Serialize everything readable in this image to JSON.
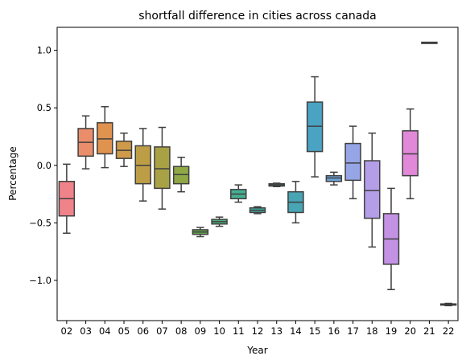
{
  "chart_data": {
    "type": "box",
    "title": "shortfall difference in cities across canada",
    "xlabel": "Year",
    "ylabel": "Percentage",
    "ylim": [
      -1.35,
      1.2
    ],
    "yticks": [
      -1.0,
      -0.5,
      0.0,
      0.5,
      1.0
    ],
    "ytick_labels": [
      "−1.0",
      "−0.5",
      "0.0",
      "0.5",
      "1.0"
    ],
    "grid": false,
    "legend": "none",
    "categories": [
      "02",
      "03",
      "04",
      "05",
      "06",
      "07",
      "08",
      "09",
      "10",
      "11",
      "12",
      "13",
      "14",
      "15",
      "16",
      "17",
      "18",
      "19",
      "20",
      "21",
      "22"
    ],
    "boxes": [
      {
        "label": "02",
        "whislo": -0.59,
        "q1": -0.44,
        "med": -0.29,
        "q3": -0.14,
        "whishi": 0.01,
        "color": "#f0828a"
      },
      {
        "label": "03",
        "whislo": -0.03,
        "q1": 0.08,
        "med": 0.2,
        "q3": 0.32,
        "whishi": 0.43,
        "color": "#e98d6b"
      },
      {
        "label": "04",
        "whislo": -0.02,
        "q1": 0.1,
        "med": 0.23,
        "q3": 0.37,
        "whishi": 0.51,
        "color": "#e0934f"
      },
      {
        "label": "05",
        "whislo": -0.01,
        "q1": 0.06,
        "med": 0.13,
        "q3": 0.21,
        "whishi": 0.28,
        "color": "#cf9a4a"
      },
      {
        "label": "06",
        "whislo": -0.31,
        "q1": -0.16,
        "med": 0.0,
        "q3": 0.17,
        "whishi": 0.32,
        "color": "#bd9e47"
      },
      {
        "label": "07",
        "whislo": -0.38,
        "q1": -0.2,
        "med": -0.03,
        "q3": 0.16,
        "whishi": 0.33,
        "color": "#a9a244"
      },
      {
        "label": "08",
        "whislo": -0.23,
        "q1": -0.16,
        "med": -0.08,
        "q3": -0.01,
        "whishi": 0.07,
        "color": "#8fa845"
      },
      {
        "label": "09",
        "whislo": -0.62,
        "q1": -0.6,
        "med": -0.58,
        "q3": -0.56,
        "whishi": -0.54,
        "color": "#65ad4e"
      },
      {
        "label": "10",
        "whislo": -0.53,
        "q1": -0.51,
        "med": -0.49,
        "q3": -0.47,
        "whishi": -0.45,
        "color": "#4eb07d"
      },
      {
        "label": "11",
        "whislo": -0.32,
        "q1": -0.29,
        "med": -0.25,
        "q3": -0.21,
        "whishi": -0.17,
        "color": "#47ae93"
      },
      {
        "label": "12",
        "whislo": -0.42,
        "q1": -0.41,
        "med": -0.39,
        "q3": -0.37,
        "whishi": -0.36,
        "color": "#46ab9f"
      },
      {
        "label": "13",
        "whislo": -0.185,
        "q1": -0.18,
        "med": -0.17,
        "q3": -0.16,
        "whishi": -0.155,
        "color": "#47a8aa"
      },
      {
        "label": "14",
        "whislo": -0.5,
        "q1": -0.41,
        "med": -0.32,
        "q3": -0.23,
        "whishi": -0.14,
        "color": "#48a5b4"
      },
      {
        "label": "15",
        "whislo": -0.1,
        "q1": 0.12,
        "med": 0.34,
        "q3": 0.55,
        "whishi": 0.77,
        "color": "#4aa3c2"
      },
      {
        "label": "16",
        "whislo": -0.17,
        "q1": -0.14,
        "med": -0.11,
        "q3": -0.09,
        "whishi": -0.06,
        "color": "#6ea4da"
      },
      {
        "label": "17",
        "whislo": -0.29,
        "q1": -0.13,
        "med": 0.02,
        "q3": 0.19,
        "whishi": 0.34,
        "color": "#95a5e6"
      },
      {
        "label": "18",
        "whislo": -0.71,
        "q1": -0.46,
        "med": -0.22,
        "q3": 0.04,
        "whishi": 0.28,
        "color": "#b49ee8"
      },
      {
        "label": "19",
        "whislo": -1.08,
        "q1": -0.86,
        "med": -0.64,
        "q3": -0.42,
        "whishi": -0.2,
        "color": "#c492e4"
      },
      {
        "label": "20",
        "whislo": -0.29,
        "q1": -0.09,
        "med": 0.1,
        "q3": 0.3,
        "whishi": 0.49,
        "color": "#e188d8"
      },
      {
        "label": "21",
        "whislo": 1.065,
        "q1": 1.065,
        "med": 1.065,
        "q3": 1.065,
        "whishi": 1.065,
        "color": "#ea86c6"
      },
      {
        "label": "22",
        "whislo": -1.22,
        "q1": -1.215,
        "med": -1.21,
        "q3": -1.205,
        "whishi": -1.2,
        "color": "#ee85b4"
      }
    ]
  }
}
